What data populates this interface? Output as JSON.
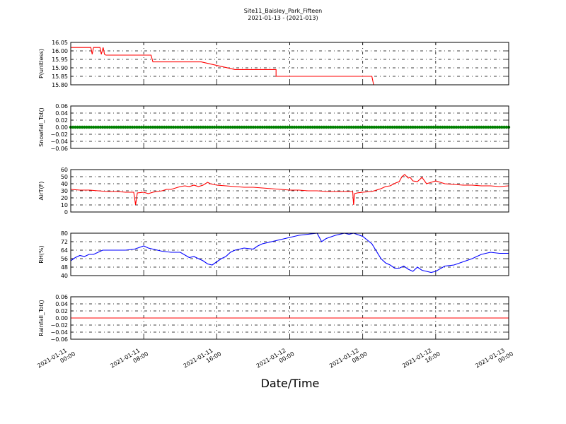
{
  "figure": {
    "title": "Site11_Baisley_Park_Fifteen",
    "subtitle": "2021-01-13 - (2021-013)",
    "xlabel": "Date/Time"
  },
  "chart_data": [
    {
      "type": "line",
      "ylabel": "P(unitless)",
      "ylim": [
        15.8,
        16.05
      ],
      "yticks": [
        "16.05",
        "16.00",
        "15.95",
        "15.90",
        "15.85",
        "15.80"
      ],
      "grid": true,
      "color": "#ff0000",
      "series": [
        {
          "x": [
            0,
            2.2,
            2.35,
            2.5,
            3.2,
            3.35,
            3.55,
            3.7,
            3.85,
            8.8,
            9.0,
            14.0,
            14.1,
            14.2,
            14.3,
            18.0,
            21.0,
            22.5,
            22.5,
            22.5,
            30.5,
            32.5,
            33.0,
            33.2,
            38.4
          ],
          "y": [
            16.02,
            16.02,
            15.98,
            16.02,
            16.02,
            15.98,
            16.02,
            15.98,
            15.975,
            15.975,
            15.935,
            15.935,
            15.935,
            15.935,
            15.935,
            15.89,
            15.89,
            15.89,
            15.89,
            15.85,
            15.85,
            15.85,
            15.85,
            15.8,
            15.8
          ]
        }
      ]
    },
    {
      "type": "scatter",
      "ylabel": "Snowfall_Tot()",
      "ylim": [
        -0.06,
        0.06
      ],
      "yticks": [
        "0.06",
        "0.04",
        "0.02",
        "0.00",
        "−0.02",
        "−0.04",
        "−0.06"
      ],
      "grid": true,
      "color": "#008000",
      "series": [
        {
          "x_range": [
            0,
            48
          ],
          "step": 0.25,
          "y": 0.0
        }
      ]
    },
    {
      "type": "line",
      "ylabel": "AirT(F)",
      "ylim": [
        0,
        60
      ],
      "yticks": [
        "60",
        "50",
        "40",
        "30",
        "20",
        "10",
        "0"
      ],
      "grid": true,
      "color": "#ff0000",
      "series": [
        {
          "x": [
            0,
            1,
            2,
            3,
            4,
            5,
            6,
            6.9,
            7.0,
            7.1,
            7.3,
            8.0,
            8.5,
            9,
            9.5,
            10,
            10.5,
            11,
            11.5,
            12,
            12.5,
            13,
            13.5,
            14,
            14.5,
            15,
            15.3,
            16,
            17,
            18,
            19,
            20,
            21,
            22,
            23,
            24,
            25,
            26,
            27,
            28,
            29,
            30,
            30.9,
            31.0,
            31.1,
            31.4,
            32,
            33,
            33.5,
            34,
            34.5,
            35,
            35.3,
            35.6,
            36,
            36.3,
            36.6,
            37,
            37.2,
            37.5,
            38,
            38.5,
            39,
            39.5,
            40,
            41,
            42,
            43,
            44,
            45,
            46,
            47,
            48
          ],
          "y": [
            32,
            31,
            31,
            30,
            29,
            29,
            28,
            28,
            20,
            10,
            27,
            28,
            26,
            28,
            29,
            30,
            32,
            32,
            34,
            36,
            37,
            36,
            38,
            36,
            38,
            42,
            40,
            38,
            37,
            36,
            35,
            35,
            34,
            33,
            32,
            31,
            31,
            30,
            30,
            29,
            29,
            29,
            29,
            10,
            26,
            27,
            28,
            29,
            31,
            33,
            36,
            37,
            39,
            41,
            43,
            50,
            53,
            48,
            49,
            44,
            43,
            49,
            40,
            42,
            44,
            40,
            39,
            38,
            38,
            37,
            37,
            36,
            37
          ]
        }
      ]
    },
    {
      "type": "line",
      "ylabel": "RH(%)",
      "ylim": [
        40,
        80
      ],
      "yticks": [
        "80",
        "72",
        "64",
        "56",
        "48",
        "40"
      ],
      "grid": true,
      "color": "#0000ff",
      "series": [
        {
          "x": [
            0,
            0.5,
            1,
            1.5,
            2,
            2.5,
            3,
            3.5,
            4,
            5,
            6,
            7,
            8,
            8.5,
            9,
            9.5,
            10,
            11,
            12,
            13,
            13.5,
            14,
            14.5,
            15,
            15.5,
            16,
            16.5,
            17,
            17.5,
            18,
            19,
            20,
            20.5,
            21,
            22,
            23,
            24,
            25,
            26,
            27,
            27.5,
            28,
            29,
            30,
            30.5,
            31,
            32,
            33,
            34,
            34.5,
            35,
            35.5,
            36,
            36.5,
            37,
            37.5,
            38,
            38.5,
            39,
            39.5,
            40,
            41,
            42,
            43,
            44,
            45,
            46,
            47,
            48
          ],
          "y": [
            54,
            57,
            59,
            58,
            60,
            60,
            62,
            64,
            64,
            64,
            64,
            65,
            68,
            66,
            65,
            64,
            63,
            62,
            62,
            57,
            58,
            56,
            54,
            51,
            50,
            53,
            56,
            58,
            62,
            64,
            66,
            65,
            68,
            70,
            72,
            74,
            76,
            78,
            79,
            80,
            72,
            75,
            78,
            80,
            79,
            80,
            77,
            70,
            56,
            52,
            50,
            47,
            47,
            49,
            46,
            44,
            48,
            45,
            44,
            43,
            44,
            49,
            50,
            53,
            56,
            60,
            62,
            61,
            61
          ]
        }
      ]
    },
    {
      "type": "line",
      "ylabel": "Rainfall_Tot()",
      "ylim": [
        -0.06,
        0.06
      ],
      "yticks": [
        "0.06",
        "0.04",
        "0.02",
        "0.00",
        "−0.02",
        "−0.04",
        "−0.06"
      ],
      "grid": true,
      "color": "#ff0000",
      "series": [
        {
          "x": [
            0,
            48
          ],
          "y": [
            0.0,
            0.0
          ]
        }
      ]
    }
  ],
  "xaxis": {
    "range_hours": [
      0,
      48
    ],
    "ticks": [
      {
        "hour": 0,
        "line1": "2021-01-11",
        "line2": "00:00"
      },
      {
        "hour": 8,
        "line1": "2021-01-11",
        "line2": "08:00"
      },
      {
        "hour": 16,
        "line1": "2021-01-11",
        "line2": "16:00"
      },
      {
        "hour": 24,
        "line1": "2021-01-12",
        "line2": "00:00"
      },
      {
        "hour": 32,
        "line1": "2021-01-12",
        "line2": "08:00"
      },
      {
        "hour": 40,
        "line1": "2021-01-12",
        "line2": "16:00"
      },
      {
        "hour": 48,
        "line1": "2021-01-13",
        "line2": "00:00"
      }
    ]
  }
}
